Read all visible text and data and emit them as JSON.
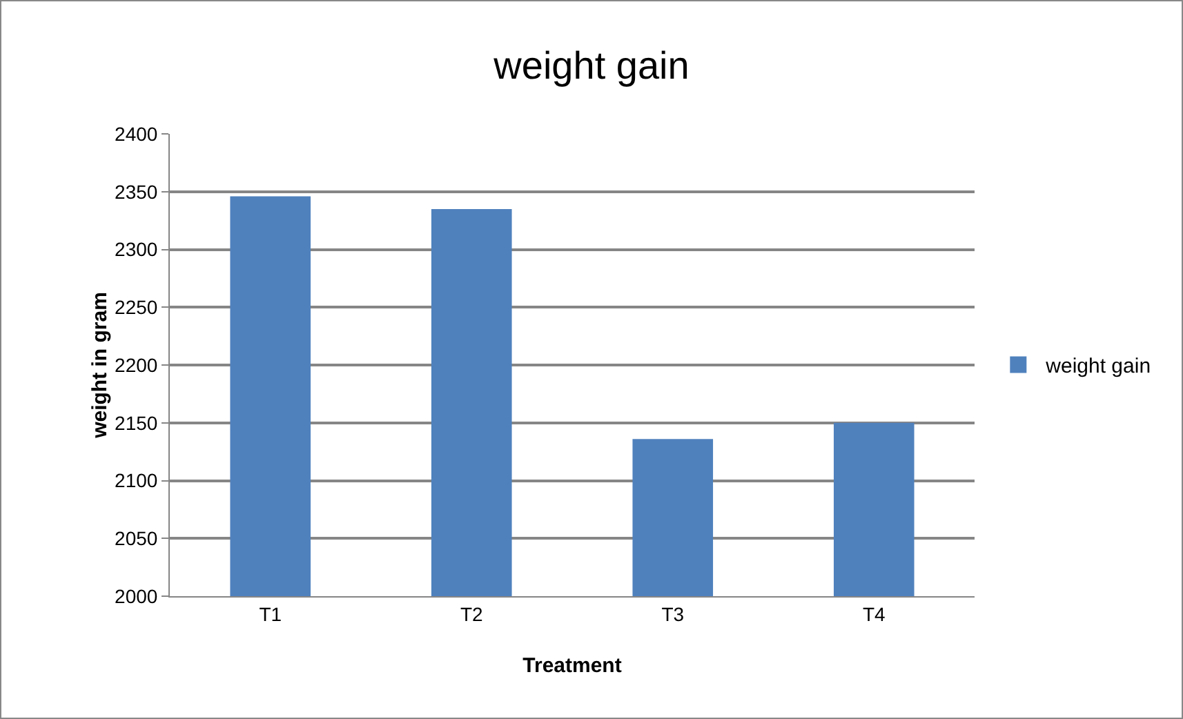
{
  "chart_data": {
    "type": "bar",
    "title": "weight gain",
    "xlabel": "Treatment",
    "ylabel": "weight in gram",
    "categories": [
      "T1",
      "T2",
      "T3",
      "T4"
    ],
    "series": [
      {
        "name": "weight gain",
        "color": "#4f81bd",
        "values": [
          2346,
          2335,
          2136,
          2150
        ]
      }
    ],
    "ylim": [
      2000,
      2400
    ],
    "yticks": [
      2000,
      2050,
      2100,
      2150,
      2200,
      2250,
      2300,
      2350,
      2400
    ],
    "grid": "y",
    "legend": "right"
  }
}
